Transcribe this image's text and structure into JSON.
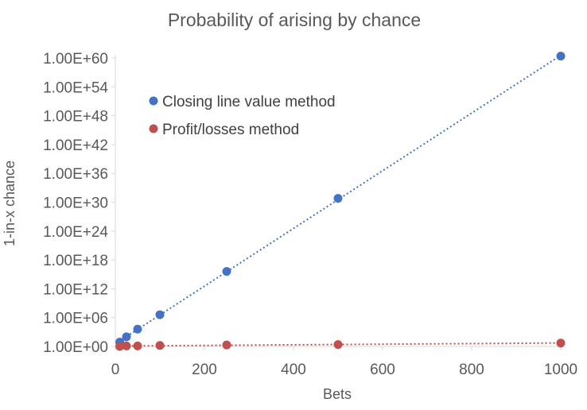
{
  "chart_data": {
    "type": "scatter",
    "title": "Probability of arising by chance",
    "xlabel": "Bets",
    "ylabel": "1-in-x chance",
    "xlim": [
      0,
      1000
    ],
    "ylim_log10": [
      0,
      60
    ],
    "x_ticks": [
      0,
      200,
      400,
      600,
      800,
      1000
    ],
    "x_tick_labels": [
      "0",
      "200",
      "400",
      "600",
      "800",
      "1000"
    ],
    "y_ticks_log10": [
      0,
      6,
      12,
      18,
      24,
      30,
      36,
      42,
      48,
      54,
      60
    ],
    "y_tick_labels": [
      "1.00E+00",
      "1.00E+06",
      "1.00E+12",
      "1.00E+18",
      "1.00E+24",
      "1.00E+30",
      "1.00E+36",
      "1.00E+42",
      "1.00E+48",
      "1.00E+54",
      "1.00E+60"
    ],
    "y_scale": "log",
    "grid": false,
    "legend_position": "top-left",
    "trendlines": "dotted linear fit per series",
    "series": [
      {
        "name": "Closing line value method",
        "color": "#4472C4",
        "x": [
          10,
          25,
          50,
          100,
          250,
          500,
          1000
        ],
        "y_log10": [
          0.9,
          2.0,
          3.6,
          6.6,
          15.6,
          30.8,
          60.4
        ]
      },
      {
        "name": "Profit/losses method",
        "color": "#C0504D",
        "x": [
          10,
          25,
          50,
          100,
          250,
          500,
          1000
        ],
        "y_log10": [
          0.0,
          0.1,
          0.1,
          0.2,
          0.3,
          0.4,
          0.7
        ]
      }
    ]
  }
}
